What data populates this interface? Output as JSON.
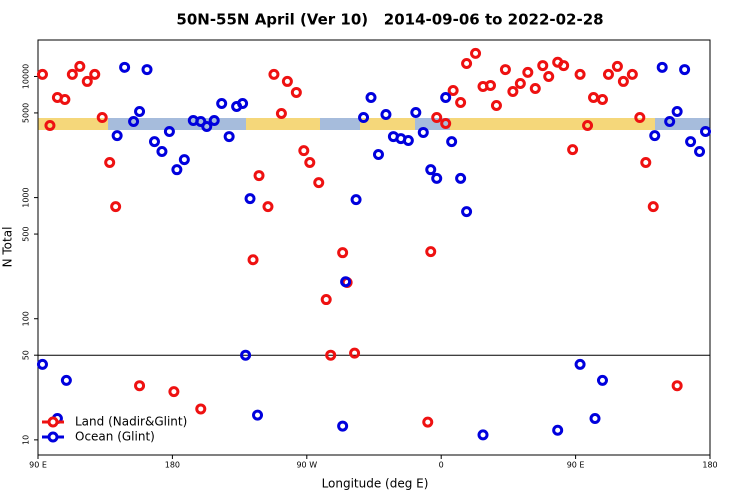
{
  "chart_data": {
    "type": "scatter",
    "title": "50N-55N April (Ver 10)   2014-09-06 to 2022-02-28",
    "x_label": "Longitude (deg E)",
    "y_label": "N Total",
    "xlim": [
      90,
      540
    ],
    "xticks": [
      {
        "value": 90,
        "label": "90 E"
      },
      {
        "value": 180,
        "label": "180"
      },
      {
        "value": 270,
        "label": "90 W"
      },
      {
        "value": 360,
        "label": "0"
      },
      {
        "value": 450,
        "label": "90 E"
      },
      {
        "value": 540,
        "label": "180"
      }
    ],
    "ylim": [
      7.5,
      20000
    ],
    "log_scale": true,
    "yticks": [
      10,
      50,
      100,
      500,
      1000,
      5000,
      10000
    ],
    "reference_line": 50,
    "legend": "bottom-left",
    "series": [
      {
        "name": "Land (Nadir&Glint)",
        "color": "#ee1111",
        "x": [
          93,
          98,
          103,
          108,
          113,
          118,
          123,
          128,
          133,
          138,
          142,
          158,
          181,
          199,
          234,
          238,
          244,
          248,
          253,
          257,
          263,
          268,
          272,
          278,
          283,
          286,
          294,
          297,
          302,
          351,
          353,
          357,
          363,
          368,
          373,
          377,
          383,
          388,
          393,
          397,
          403,
          408,
          413,
          418,
          423,
          428,
          432,
          438,
          442,
          448,
          453,
          458,
          462,
          468,
          472,
          478,
          482,
          488,
          493,
          497,
          502,
          518
        ],
        "values": [
          10400,
          3940,
          6700,
          6450,
          10400,
          12100,
          9100,
          10400,
          4580,
          1950,
          843,
          28,
          25,
          18,
          307,
          1520,
          843,
          10400,
          4950,
          9100,
          7380,
          2440,
          1950,
          1330,
          144,
          50,
          351,
          199,
          52,
          14,
          358,
          4580,
          4090,
          7660,
          6100,
          12800,
          15500,
          8270,
          8430,
          5760,
          11400,
          7520,
          8750,
          10800,
          7960,
          12300,
          10000,
          13100,
          12300,
          2490,
          10400,
          3940,
          6700,
          6450,
          10400,
          12100,
          9100,
          10400,
          4580,
          1950,
          843,
          28
        ]
      },
      {
        "name": "Ocean (Glint)",
        "color": "#0000dd",
        "x": [
          93,
          103,
          109,
          143,
          148,
          154,
          158,
          163,
          168,
          173,
          178,
          183,
          188,
          194,
          199,
          203,
          208,
          213,
          218,
          223,
          227,
          229,
          232,
          237,
          294,
          296,
          303,
          308,
          313,
          318,
          323,
          328,
          333,
          338,
          343,
          348,
          353,
          357,
          363,
          367,
          373,
          377,
          388,
          438,
          453,
          463,
          468,
          503,
          508,
          513,
          518,
          523,
          527,
          533,
          537
        ],
        "values": [
          42,
          15,
          31,
          3250,
          11900,
          4250,
          5140,
          11400,
          2900,
          2400,
          3510,
          1700,
          2060,
          4330,
          4250,
          3860,
          4330,
          5980,
          3190,
          5650,
          5980,
          50,
          981,
          16,
          13,
          202,
          962,
          4580,
          6700,
          2270,
          4850,
          3190,
          3070,
          2960,
          5040,
          3450,
          1700,
          1440,
          6700,
          2900,
          1440,
          766,
          11,
          12,
          42,
          15,
          31,
          3250,
          11900,
          4250,
          5140,
          11400,
          2900,
          2400,
          3510
        ]
      }
    ]
  }
}
